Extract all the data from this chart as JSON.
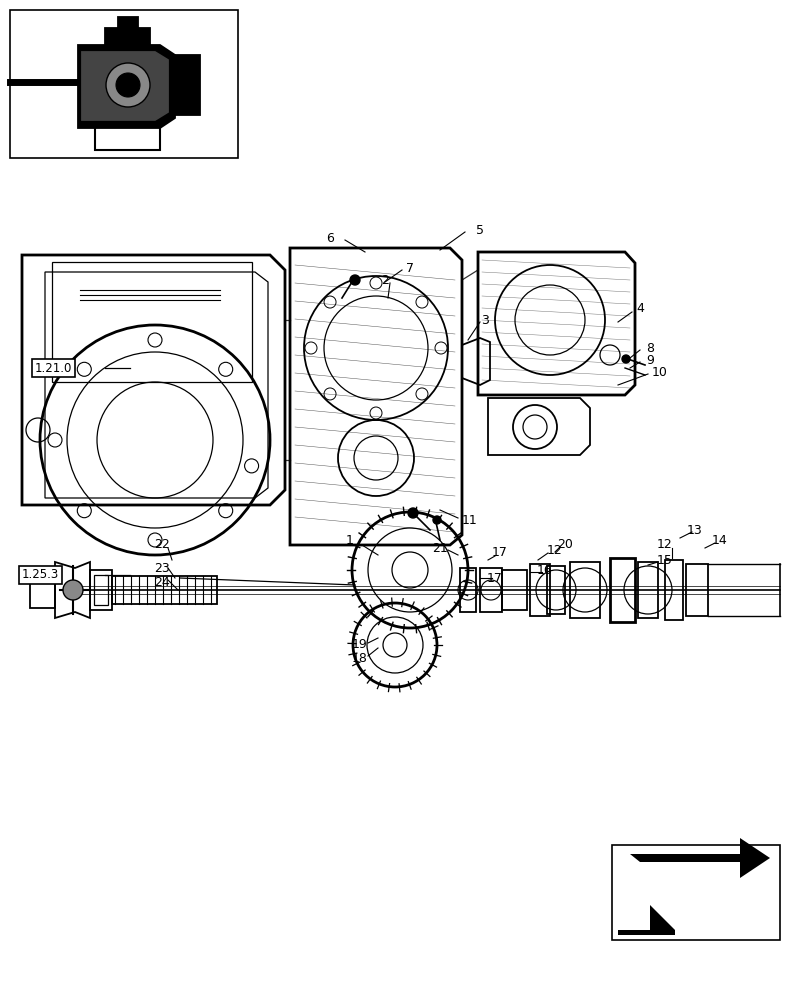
{
  "bg": "#ffffff",
  "fw": 8.08,
  "fh": 10.0,
  "dpi": 100
}
